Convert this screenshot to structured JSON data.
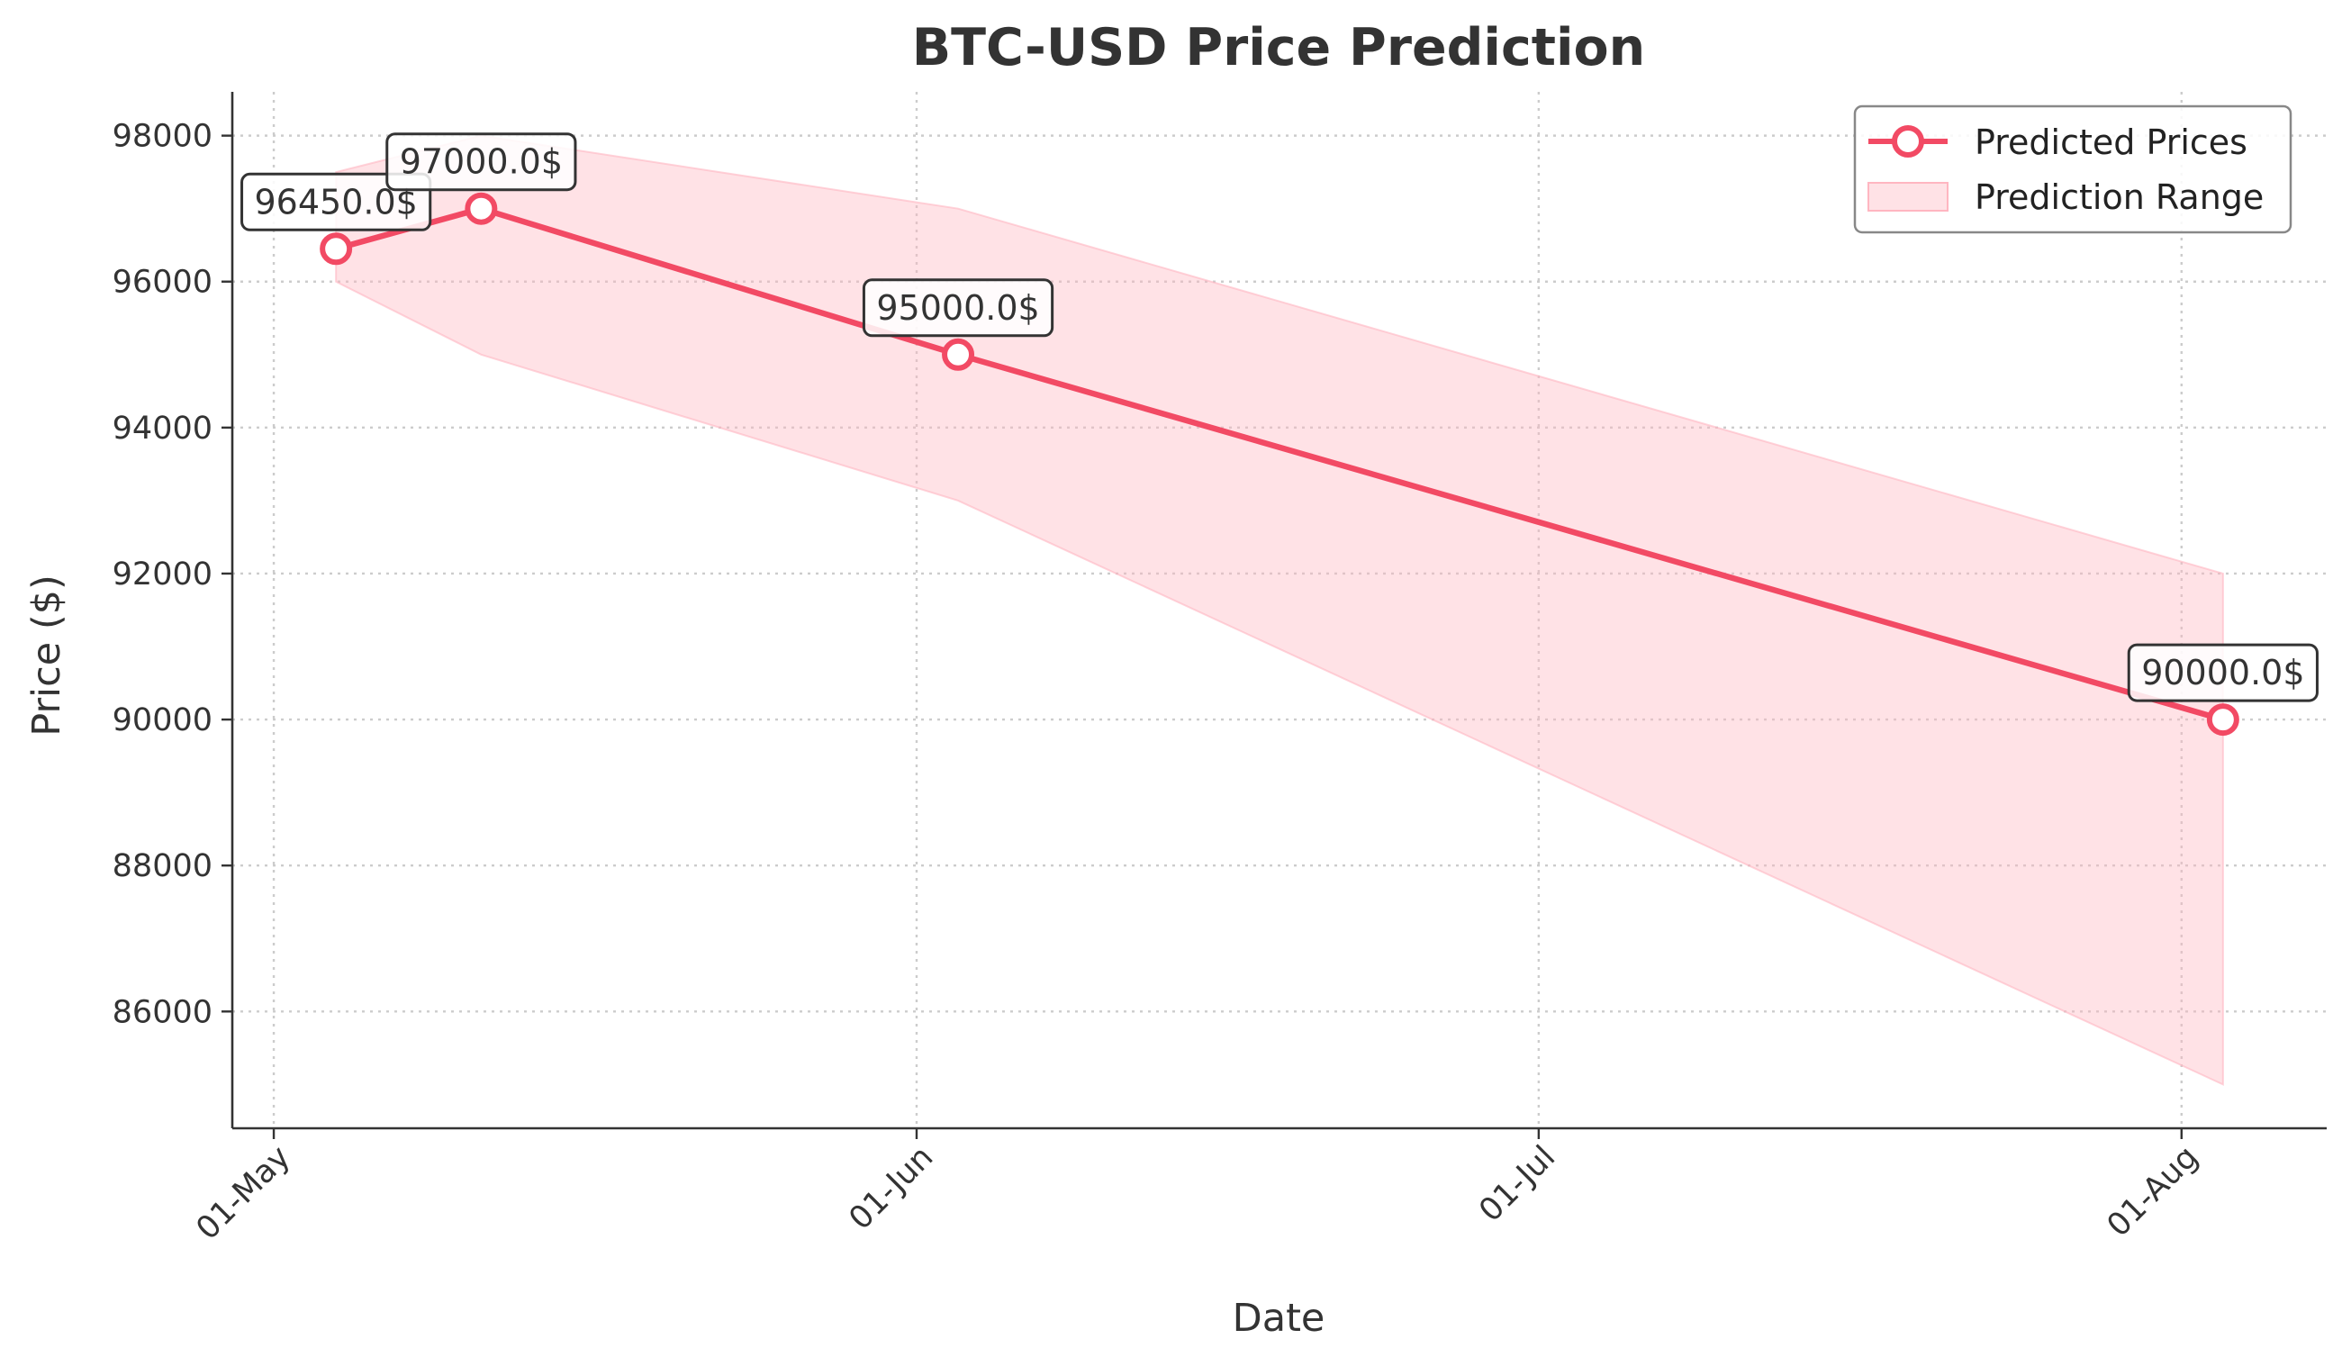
{
  "colors": {
    "line": "#f24a64",
    "band": "#ffb6c1",
    "axis": "#333333",
    "grid": "#cccccc"
  },
  "chart_data": {
    "type": "line",
    "title": "BTC-USD Price Prediction",
    "xlabel": "Date",
    "ylabel": "Price ($)",
    "x_axis_type": "date",
    "xlim": [
      "2025-04-29",
      "2025-08-08"
    ],
    "ylim": [
      84400,
      98600
    ],
    "x_ticks": [
      {
        "date": "2025-05-01",
        "label": "01-May"
      },
      {
        "date": "2025-06-01",
        "label": "01-Jun"
      },
      {
        "date": "2025-07-01",
        "label": "01-Jul"
      },
      {
        "date": "2025-08-01",
        "label": "01-Aug"
      }
    ],
    "y_ticks": [
      86000,
      88000,
      90000,
      92000,
      94000,
      96000,
      98000
    ],
    "grid": true,
    "legend_position": "top-right",
    "series": [
      {
        "name": "Predicted Prices",
        "kind": "line-marker",
        "x": [
          "2025-05-04",
          "2025-05-11",
          "2025-06-03",
          "2025-08-03"
        ],
        "y": [
          96450,
          97000,
          95000,
          90000
        ],
        "annotations": [
          "96450.0$",
          "97000.0$",
          "95000.0$",
          "90000.0$"
        ]
      },
      {
        "name": "Prediction Range",
        "kind": "band",
        "x": [
          "2025-05-04",
          "2025-05-11",
          "2025-06-03",
          "2025-08-03"
        ],
        "lower": [
          96000,
          95000,
          93000,
          85000
        ],
        "upper": [
          97500,
          98000,
          97000,
          92000
        ]
      }
    ]
  }
}
